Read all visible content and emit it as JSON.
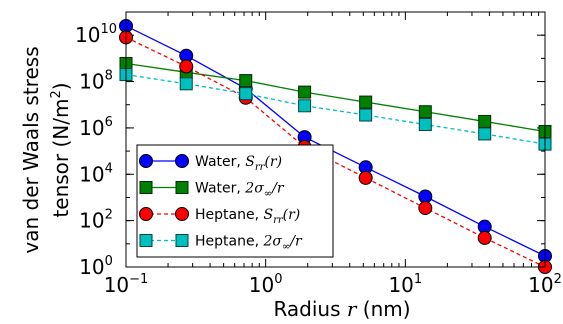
{
  "chart_data": {
    "type": "line",
    "x_scale": "log",
    "y_scale": "log",
    "xlim": [
      0.1,
      100
    ],
    "ylim": [
      1,
      100000000000
    ],
    "xlabel": "Radius",
    "xlabel_symbol": "r",
    "xlabel_unit": "(nm)",
    "ylabel_line1": "van der Waals stress",
    "ylabel_line2_prefix": "tensor (N/m",
    "ylabel_line2_sup": "2",
    "ylabel_line2_suffix": ")",
    "x_ticks": [
      {
        "value": 0.1,
        "base": "10",
        "exp": "−1"
      },
      {
        "value": 1,
        "base": "10",
        "exp": "0"
      },
      {
        "value": 10,
        "base": "10",
        "exp": "1"
      },
      {
        "value": 100,
        "base": "10",
        "exp": "2"
      }
    ],
    "y_ticks": [
      {
        "value": 1,
        "base": "10",
        "exp": "0"
      },
      {
        "value": 100,
        "base": "10",
        "exp": "2"
      },
      {
        "value": 10000,
        "base": "10",
        "exp": "4"
      },
      {
        "value": 1000000,
        "base": "10",
        "exp": "6"
      },
      {
        "value": 100000000,
        "base": "10",
        "exp": "8"
      },
      {
        "value": 10000000000,
        "base": "10",
        "exp": "10"
      }
    ],
    "grid": false,
    "legend_position": "lower-left",
    "x": [
      0.1,
      0.27,
      0.72,
      1.9,
      5.2,
      13.9,
      37,
      100
    ],
    "series": [
      {
        "name": "Water, S_rr(r)",
        "label_text": "Water, ",
        "label_math": "S",
        "label_math_sub": "rr",
        "label_math_suffix": "(r)",
        "color": "#0000ff",
        "marker": "circle",
        "linestyle": "solid",
        "values": [
          25000000000,
          1300000000,
          50000000,
          400000,
          20000,
          1100,
          55,
          3
        ]
      },
      {
        "name": "Water, 2σ∞/r",
        "label_text": "Water, ",
        "label_math": "2σ",
        "label_math_sub": "∞",
        "label_math_suffix": "/r",
        "color": "#008000",
        "marker": "square",
        "linestyle": "solid",
        "values": [
          600000000,
          250000000,
          110000000,
          35000000,
          13000000,
          5000000,
          1900000,
          700000
        ]
      },
      {
        "name": "Heptane, S_rr(r)",
        "label_text": "Heptane, ",
        "label_math": "S",
        "label_math_sub": "rr",
        "label_math_suffix": "(r)",
        "color": "#ff0000",
        "marker": "circle",
        "linestyle": "dashed",
        "values": [
          8000000000,
          450000000,
          20000000,
          150000,
          7000,
          350,
          18,
          1
        ]
      },
      {
        "name": "Heptane, 2σ∞/r",
        "label_text": "Heptane, ",
        "label_math": "2σ",
        "label_math_sub": "∞",
        "label_math_suffix": "/r",
        "color": "#00bfbf",
        "marker": "square",
        "linestyle": "dashed",
        "values": [
          200000000,
          80000000,
          30000000,
          9000000,
          3600000,
          1400000,
          550000,
          200000
        ]
      }
    ]
  }
}
